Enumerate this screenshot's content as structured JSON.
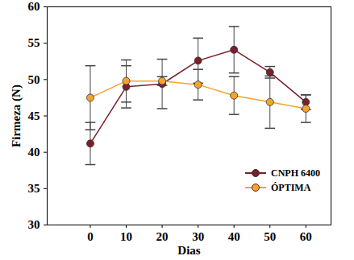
{
  "chart_data": {
    "type": "line",
    "x_label": "Dias",
    "y_label": "Firmeza (N)",
    "x": [
      0,
      10,
      20,
      30,
      40,
      50,
      60
    ],
    "series": [
      {
        "name": "CNPH 6400",
        "color": "#7a1f2b",
        "marker": "circle",
        "values": [
          41.2,
          49.0,
          49.4,
          52.6,
          54.1,
          51.0,
          46.9
        ],
        "errors": [
          2.9,
          2.9,
          3.4,
          3.1,
          3.2,
          0.8,
          1.0
        ]
      },
      {
        "name": "ÓPTIMA",
        "color": "#f5a32a",
        "marker": "circle",
        "values": [
          47.5,
          49.8,
          49.8,
          49.3,
          47.8,
          46.9,
          46.0
        ],
        "errors": [
          4.4,
          2.9,
          0.6,
          2.1,
          2.6,
          3.6,
          1.9
        ]
      }
    ],
    "xlim": [
      -12,
      67
    ],
    "xticks": [
      0,
      10,
      20,
      30,
      40,
      50,
      60
    ],
    "ylim": [
      30,
      60
    ],
    "yticks": [
      30,
      35,
      40,
      45,
      50,
      55,
      60
    ],
    "grid": false,
    "legend": "lower right"
  }
}
